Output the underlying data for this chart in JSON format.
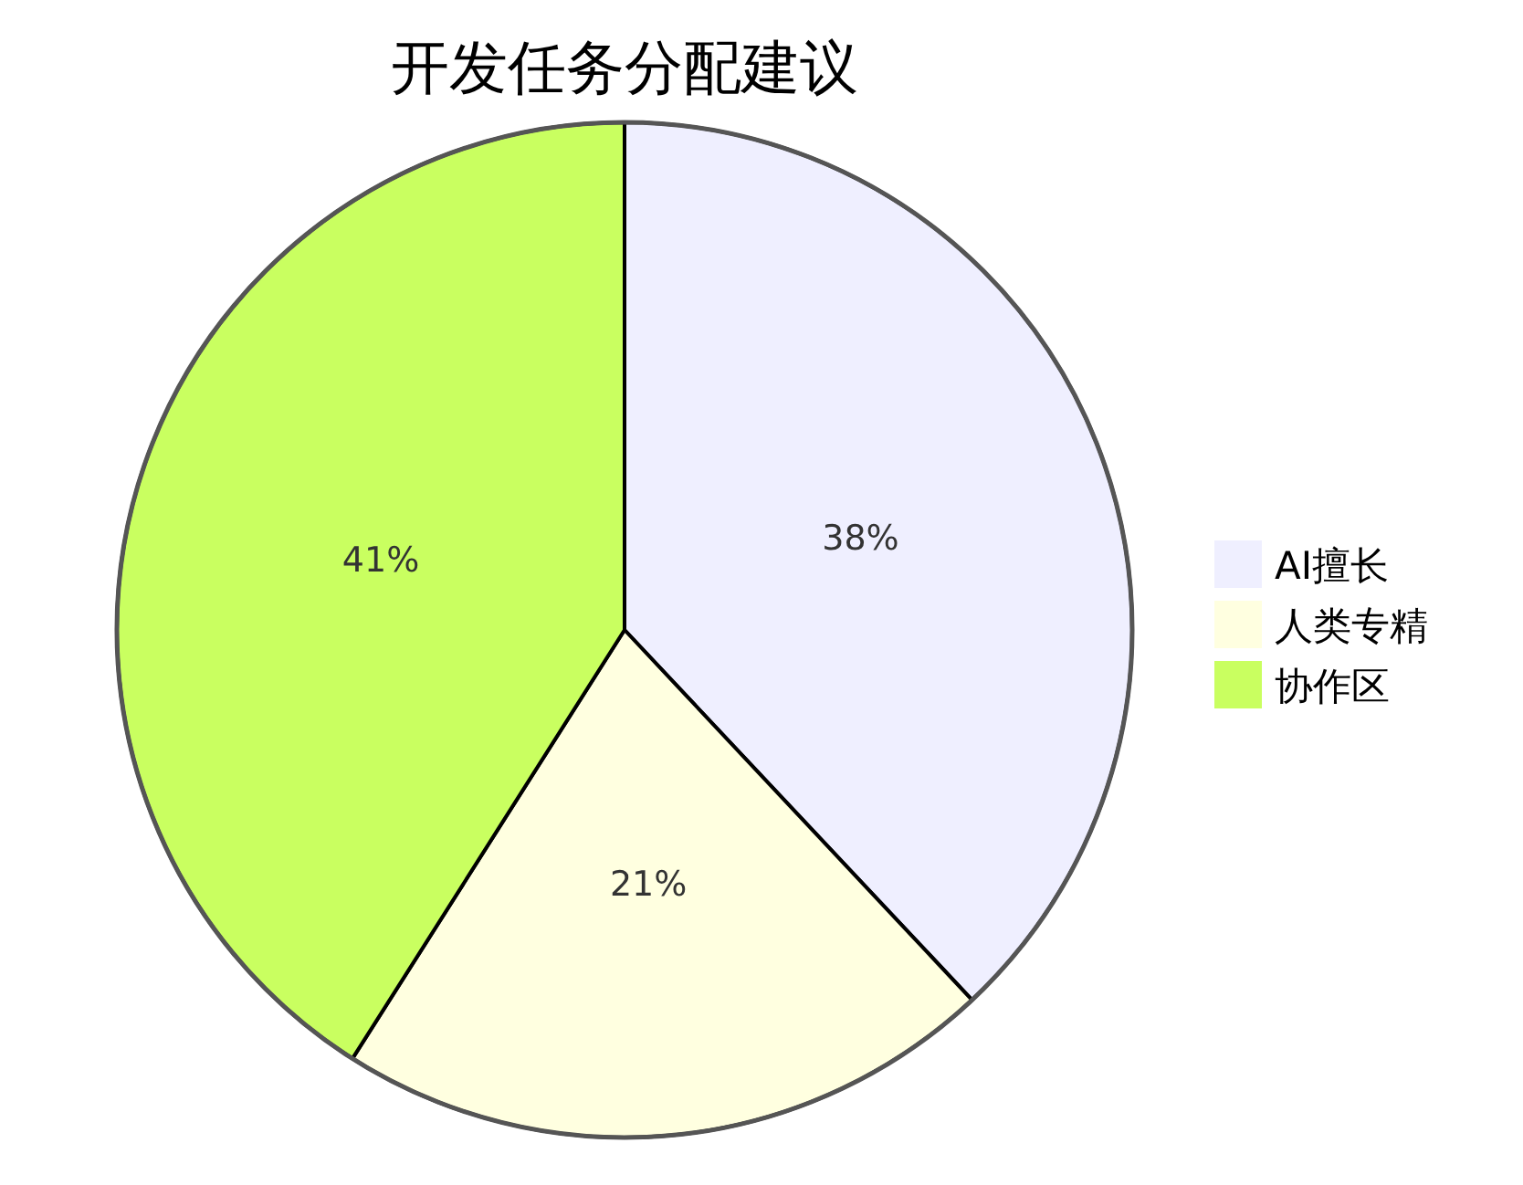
{
  "chart_data": {
    "type": "pie",
    "title": "开发任务分配建议",
    "categories": [
      "AI擅长",
      "人类专精",
      "协作区"
    ],
    "values": [
      38,
      21,
      41
    ],
    "colors": [
      "#efefff",
      "#ffffe0",
      "#c9ff60"
    ],
    "value_labels": [
      "38%",
      "21%",
      "41%"
    ],
    "legend": "right"
  }
}
